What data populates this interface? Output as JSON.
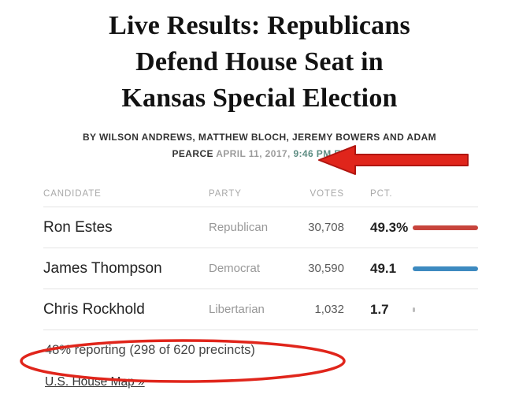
{
  "page": {
    "title_lines": [
      "Live Results: Republicans",
      "Defend House Seat in",
      "Kansas Special Election"
    ],
    "byline_line1": "BY WILSON ANDREWS, MATTHEW BLOCH, JEREMY BOWERS AND ADAM",
    "byline_name2": "PEARCE",
    "date_text": " APRIL 11, 2017, ",
    "time_text": "9:46 PM ET",
    "reporting_text": "48% reporting (298 of 620 precincts)",
    "link_text": "U.S. House Map »"
  },
  "table": {
    "headers": [
      "CANDIDATE",
      "PARTY",
      "VOTES",
      "PCT."
    ],
    "rows": [
      {
        "candidate": "Ron Estes",
        "party": "Republican",
        "votes": "30,708",
        "pct": "49.3%",
        "pct_value": 49.3,
        "bar_color": "#c7443c"
      },
      {
        "candidate": "James Thompson",
        "party": "Democrat",
        "votes": "30,590",
        "pct": "49.1",
        "pct_value": 49.1,
        "bar_color": "#3d8ac0"
      },
      {
        "candidate": "Chris Rockhold",
        "party": "Libertarian",
        "votes": "1,032",
        "pct": "1.7",
        "pct_value": 1.7,
        "bar_color": "#bcbcbc"
      }
    ]
  },
  "annotations": {
    "arrow_color": "#e0251b",
    "arrow_stroke": "#b01510",
    "circle_color": "#e0251b"
  }
}
